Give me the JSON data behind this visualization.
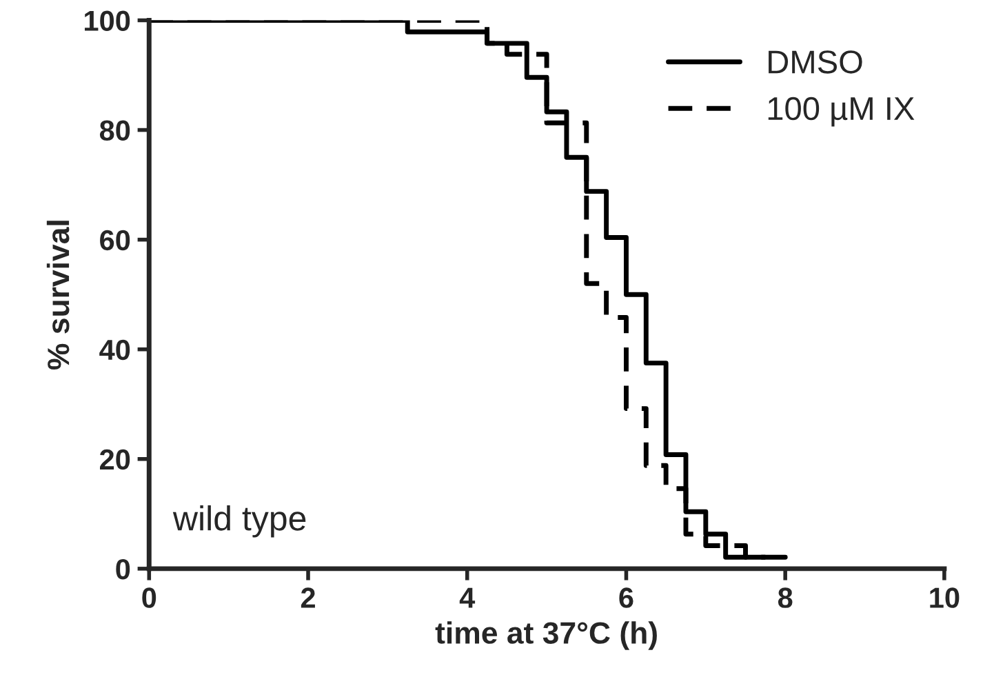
{
  "chart_data": {
    "type": "step",
    "xlabel": "time at 37°C (h)",
    "ylabel": "% survival",
    "series": [
      {
        "name": "DMSO",
        "color": "#000000",
        "line_style": "solid",
        "x": [
          0,
          3.25,
          4.25,
          4.75,
          5,
          5.25,
          5.5,
          5.75,
          6,
          6.25,
          6.5,
          6.75,
          7,
          7.25,
          8
        ],
        "values": [
          100,
          97.9,
          95.8,
          89.6,
          83.3,
          75,
          68.8,
          60.4,
          50,
          37.5,
          20.8,
          10.4,
          6.3,
          2.1,
          2.1
        ]
      },
      {
        "name": "100 µM IX",
        "color": "#000000",
        "line_style": "dashed",
        "x": [
          0,
          4.25,
          4.5,
          5,
          5.5,
          5.75,
          6,
          6.25,
          6.5,
          6.75,
          7,
          7.5,
          7.75
        ],
        "values": [
          100,
          95.8,
          93.8,
          81.3,
          52,
          45.8,
          29.2,
          18.8,
          14.6,
          6.3,
          4.2,
          2.1,
          2.1
        ]
      }
    ],
    "xlim": [
      0,
      10
    ],
    "xticks": [
      0,
      2,
      4,
      6,
      8,
      10
    ],
    "ylim": [
      0,
      100
    ],
    "yticks": [
      0,
      20,
      40,
      60,
      80,
      100
    ],
    "grid": false,
    "legend": "top right",
    "annotations": [
      "wild type"
    ]
  }
}
